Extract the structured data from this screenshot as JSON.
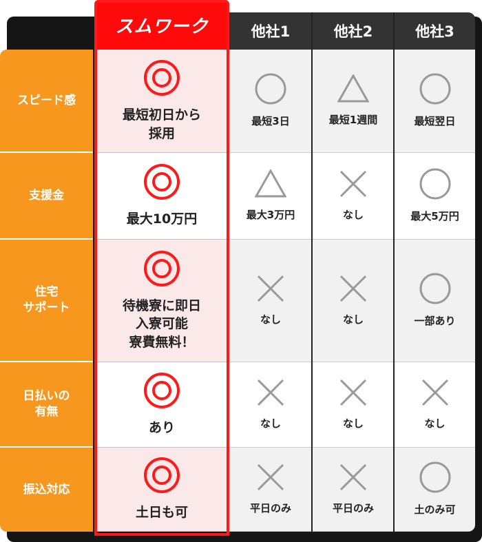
{
  "brand": {
    "name": "スムワーク",
    "accent": "#ff0a0a"
  },
  "columns": [
    "他社1",
    "他社2",
    "他社3"
  ],
  "rows": [
    {
      "label": "スピード感",
      "ours": {
        "mark": "double-circle",
        "text": "最短初日から\n採用"
      },
      "others": [
        {
          "mark": "circle",
          "text": "最短3日"
        },
        {
          "mark": "triangle",
          "text": "最短1週間"
        },
        {
          "mark": "circle",
          "text": "最短翌日"
        }
      ]
    },
    {
      "label": "支援金",
      "ours": {
        "mark": "double-circle",
        "text": "最大10万円"
      },
      "others": [
        {
          "mark": "triangle",
          "text": "最大3万円"
        },
        {
          "mark": "cross",
          "text": "なし"
        },
        {
          "mark": "circle",
          "text": "最大5万円"
        }
      ]
    },
    {
      "label": "住宅\nサポート",
      "ours": {
        "mark": "double-circle",
        "text": "待機寮に即日\n入寮可能\n寮費無料！"
      },
      "others": [
        {
          "mark": "cross",
          "text": "なし"
        },
        {
          "mark": "cross",
          "text": "なし"
        },
        {
          "mark": "circle",
          "text": "一部あり"
        }
      ]
    },
    {
      "label": "日払いの\n有無",
      "ours": {
        "mark": "double-circle",
        "text": "あり"
      },
      "others": [
        {
          "mark": "cross",
          "text": "なし"
        },
        {
          "mark": "cross",
          "text": "なし"
        },
        {
          "mark": "cross",
          "text": "なし"
        }
      ]
    },
    {
      "label": "振込対応",
      "ours": {
        "mark": "double-circle",
        "text": "土日も可"
      },
      "others": [
        {
          "mark": "cross",
          "text": "平日のみ"
        },
        {
          "mark": "cross",
          "text": "平日のみ"
        },
        {
          "mark": "circle",
          "text": "土のみ可"
        }
      ]
    }
  ],
  "colors": {
    "label_bg": "#f7971e",
    "header_bg": "#333333",
    "mark_gray": "#999999",
    "ours_highlight": "#fbe9e9"
  }
}
